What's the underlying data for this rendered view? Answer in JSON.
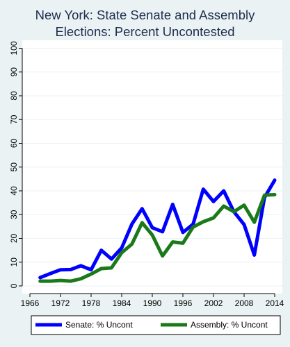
{
  "chart_data": {
    "type": "line",
    "title_lines": [
      "New York: State Senate and Assembly",
      "Elections: Percent Uncontested"
    ],
    "xlabel": "",
    "ylabel": "",
    "xlim": [
      1964.5,
      2015.5
    ],
    "ylim": [
      0,
      100
    ],
    "x_ticks": [
      1966,
      1972,
      1978,
      1984,
      1990,
      1996,
      2002,
      2008,
      2014
    ],
    "y_ticks": [
      0,
      10,
      20,
      30,
      40,
      50,
      60,
      70,
      80,
      90,
      100
    ],
    "grid": true,
    "legend_position": "bottom",
    "x": [
      1968,
      1970,
      1972,
      1974,
      1976,
      1978,
      1980,
      1982,
      1984,
      1986,
      1988,
      1990,
      1992,
      1994,
      1996,
      1998,
      2000,
      2002,
      2004,
      2006,
      2008,
      2010,
      2012,
      2014
    ],
    "series": [
      {
        "name": "Senate: % Uncont",
        "color": "#0000ff",
        "values": [
          3.5,
          5.2,
          6.8,
          6.9,
          8.5,
          6.8,
          15,
          11.3,
          16,
          26,
          32.5,
          24.5,
          22.8,
          34.3,
          22.5,
          26,
          40.7,
          35.5,
          40,
          31.2,
          25.8,
          13,
          37.2,
          44.5
        ]
      },
      {
        "name": "Assembly: % Uncont",
        "color": "#1a7a1a",
        "values": [
          2,
          2,
          2.3,
          2,
          3,
          5,
          7.3,
          7.6,
          14,
          17.6,
          26.6,
          21.4,
          12.6,
          18.5,
          18,
          24.8,
          27,
          28.6,
          33.6,
          31.2,
          34,
          26.8,
          38.2,
          38.4
        ]
      }
    ]
  }
}
